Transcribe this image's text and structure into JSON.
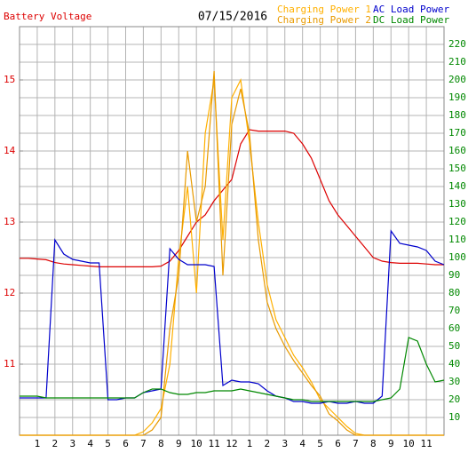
{
  "chart_data": {
    "type": "line",
    "title": "07/15/2016",
    "x": [
      0,
      0.5,
      1,
      1.5,
      2,
      2.5,
      3,
      3.5,
      4,
      4.5,
      5,
      5.5,
      6,
      6.5,
      7,
      7.5,
      8,
      8.5,
      9,
      9.5,
      10,
      10.5,
      11,
      11.5,
      12,
      12.5,
      13,
      13.5,
      14,
      14.5,
      15,
      15.5,
      16,
      16.5,
      17,
      17.5,
      18,
      18.5,
      19,
      19.5,
      20,
      20.5,
      21,
      21.5,
      22,
      22.5,
      23,
      23.5,
      24
    ],
    "xlim": [
      0,
      24
    ],
    "xticks": [
      1,
      2,
      3,
      4,
      5,
      6,
      7,
      8,
      9,
      10,
      11,
      12,
      {
        "value": 13,
        "label": "1"
      },
      {
        "value": 14,
        "label": "2"
      },
      {
        "value": 15,
        "label": "3"
      },
      {
        "value": 16,
        "label": "4"
      },
      {
        "value": 17,
        "label": "5"
      },
      {
        "value": 18,
        "label": "6"
      },
      {
        "value": 19,
        "label": "7"
      },
      {
        "value": 20,
        "label": "8"
      },
      {
        "value": 21,
        "label": "9"
      },
      {
        "value": 22,
        "label": "10"
      },
      {
        "value": 23,
        "label": "11"
      }
    ],
    "ylim": [
      10,
      15.75
    ],
    "yticks": [
      11,
      12,
      13,
      14,
      15
    ],
    "y2lim": [
      0,
      230
    ],
    "y2ticks": [
      10,
      20,
      30,
      40,
      50,
      60,
      70,
      80,
      90,
      100,
      110,
      120,
      130,
      140,
      150,
      160,
      170,
      180,
      190,
      200,
      210,
      220
    ],
    "grid": true,
    "series": [
      {
        "name": "Battery Voltage",
        "color": "#dd0000",
        "axis": "y",
        "values": [
          12.49,
          12.49,
          12.48,
          12.47,
          12.43,
          12.41,
          12.4,
          12.39,
          12.38,
          12.37,
          12.37,
          12.37,
          12.37,
          12.37,
          12.37,
          12.37,
          12.38,
          12.45,
          12.6,
          12.8,
          13.0,
          13.1,
          13.3,
          13.45,
          13.6,
          14.1,
          14.3,
          14.28,
          14.28,
          14.28,
          14.28,
          14.25,
          14.1,
          13.9,
          13.6,
          13.3,
          13.1,
          12.95,
          12.8,
          12.65,
          12.5,
          12.45,
          12.43,
          12.42,
          12.42,
          12.42,
          12.41,
          12.4,
          12.4
        ]
      },
      {
        "name": "Charging Power 1",
        "color": "#ffb000",
        "axis": "y2",
        "values": [
          0,
          0,
          0,
          0,
          0,
          0,
          0,
          0,
          0,
          0,
          0,
          0,
          0,
          0,
          2,
          7,
          15,
          40,
          100,
          140,
          80,
          170,
          200,
          110,
          190,
          200,
          165,
          120,
          85,
          65,
          55,
          45,
          38,
          30,
          20,
          15,
          10,
          5,
          1,
          0,
          0,
          0,
          0,
          0,
          0,
          0,
          0,
          0,
          0
        ]
      },
      {
        "name": "Charging Power 2",
        "color": "#e89a00",
        "axis": "y2",
        "values": [
          0,
          0,
          0,
          0,
          0,
          0,
          0,
          0,
          0,
          0,
          0,
          0,
          0,
          0,
          0,
          3,
          10,
          60,
          90,
          160,
          120,
          140,
          205,
          90,
          175,
          195,
          170,
          110,
          75,
          60,
          50,
          42,
          35,
          28,
          22,
          12,
          8,
          3,
          0,
          0,
          0,
          0,
          0,
          0,
          0,
          0,
          0,
          0,
          0
        ]
      },
      {
        "name": "AC Load Power",
        "color": "#0000cc",
        "axis": "y2",
        "values": [
          21,
          21,
          21,
          21,
          110,
          102,
          99,
          98,
          97,
          97,
          20,
          20,
          21,
          21,
          24,
          25,
          26,
          105,
          99,
          96,
          96,
          96,
          95,
          28,
          31,
          30,
          30,
          29,
          25,
          22,
          21,
          19,
          19,
          18,
          18,
          19,
          18,
          18,
          19,
          18,
          18,
          22,
          115,
          108,
          107,
          106,
          104,
          98,
          96
        ]
      },
      {
        "name": "DC Load Power",
        "color": "#008800",
        "axis": "y2",
        "values": [
          22,
          22,
          22,
          21,
          21,
          21,
          21,
          21,
          21,
          21,
          21,
          21,
          21,
          21,
          24,
          26,
          26,
          24,
          23,
          23,
          24,
          24,
          25,
          25,
          25,
          26,
          25,
          24,
          23,
          22,
          21,
          20,
          20,
          19,
          19,
          19,
          19,
          19,
          19,
          19,
          19,
          20,
          21,
          26,
          55,
          53,
          40,
          30,
          31
        ]
      }
    ]
  }
}
